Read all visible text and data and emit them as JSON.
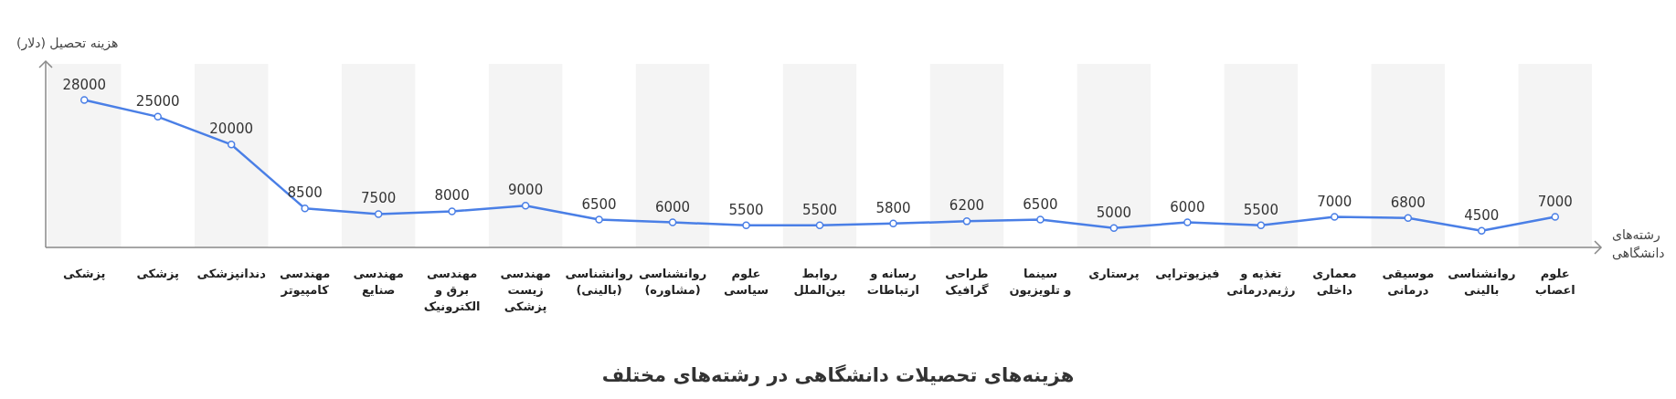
{
  "chart_data": {
    "type": "line",
    "title": "هزینه‌های تحصیلات دانشگاهی در رشته‌های مختلف",
    "xlabel": "رشته‌های\nدانشگاهی",
    "ylabel": "هزینه تحصیل (دلار)",
    "categories": [
      "پزشکی",
      "پزشکی",
      "دندانپزشکی",
      "مهندسی\nکامپیوتر",
      "مهندسی\nصنایع",
      "مهندسی\nبرق و\nالکترونیک",
      "مهندسی\nزیست\nپزشکی",
      "روانشناسی\n(بالینی)",
      "روانشناسی\n(مشاوره)",
      "علوم\nسیاسی",
      "روابط\nبین‌الملل",
      "رسانه و\nارتباطات",
      "طراحی\nگرافیک",
      "سینما\nو تلویزیون",
      "پرستاری",
      "فیزیوتراپی",
      "تغذیه و\nرژیم‌درمانی",
      "معماری\nداخلی",
      "موسیقی\nدرمانی",
      "روانشناسی\nبالینی",
      "علوم\nاعصاب"
    ],
    "series": [
      {
        "color": "#4a7fe6",
        "values": [
          28000,
          25000,
          20000,
          8500,
          7500,
          8000,
          9000,
          6500,
          6000,
          5500,
          5500,
          5800,
          6200,
          6500,
          5000,
          6000,
          5500,
          7000,
          6800,
          4500,
          7000
        ]
      }
    ],
    "ylim": [
      1500,
      34500
    ],
    "tick_labels": "x",
    "data_labels": true,
    "marker": "circle"
  }
}
